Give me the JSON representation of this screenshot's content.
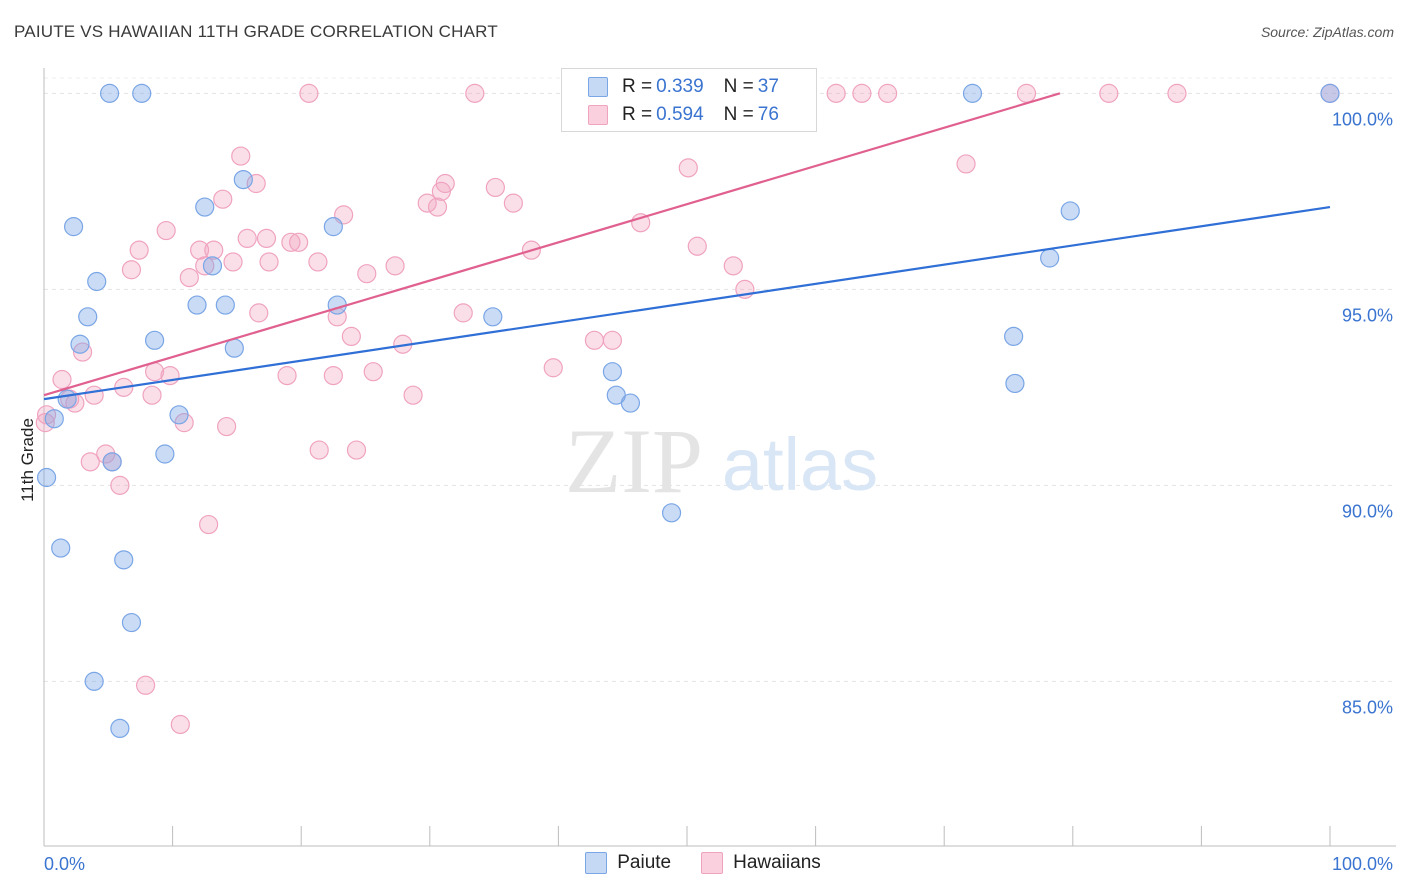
{
  "header": {
    "title": "PAIUTE VS HAWAIIAN 11TH GRADE CORRELATION CHART",
    "source": "Source: ZipAtlas.com"
  },
  "watermark": {
    "zip": "ZIP",
    "atlas": "atlas"
  },
  "legend": {
    "rows": [
      {
        "r_label": "R = ",
        "r_value": "0.339",
        "n_label": "N = ",
        "n_value": "37"
      },
      {
        "r_label": "R = ",
        "r_value": "0.594",
        "n_label": "N = ",
        "n_value": "76"
      }
    ]
  },
  "bottom_legend": {
    "paiute": "Paiute",
    "hawaiians": "Hawaiians"
  },
  "chart_data": {
    "type": "scatter",
    "title": "PAIUTE VS HAWAIIAN 11TH GRADE CORRELATION CHART",
    "xlabel": "",
    "ylabel": "11th Grade",
    "xlim": [
      0,
      100
    ],
    "ylim": [
      80.8,
      100.8
    ],
    "x_tick_labels": [
      "0.0%",
      "100.0%"
    ],
    "y_ticks": [
      85,
      90,
      95,
      100
    ],
    "y_tick_labels": [
      "85.0%",
      "90.0%",
      "95.0%",
      "100.0%"
    ],
    "colors": {
      "paiute": "#7aa6e6",
      "paiute_line": "#2f6fd6",
      "hawaiians": "#f0a3bf",
      "hawaiians_line": "#e0608f"
    },
    "series": [
      {
        "name": "Paiute",
        "r": 0.339,
        "n": 37,
        "trend": {
          "x0": 0,
          "y0": 92.2,
          "x1": 100,
          "y1": 97.1
        },
        "points": [
          [
            0.2,
            90.2
          ],
          [
            0.8,
            91.7
          ],
          [
            1.3,
            88.4
          ],
          [
            1.8,
            92.2
          ],
          [
            2.3,
            96.6
          ],
          [
            2.8,
            93.6
          ],
          [
            3.4,
            94.3
          ],
          [
            3.9,
            85.0
          ],
          [
            4.1,
            95.2
          ],
          [
            5.3,
            90.6
          ],
          [
            5.1,
            100.0
          ],
          [
            5.9,
            83.8
          ],
          [
            6.2,
            88.1
          ],
          [
            6.8,
            86.5
          ],
          [
            7.6,
            100.0
          ],
          [
            8.6,
            93.7
          ],
          [
            9.4,
            90.8
          ],
          [
            10.5,
            91.8
          ],
          [
            11.9,
            94.6
          ],
          [
            12.5,
            97.1
          ],
          [
            13.1,
            95.6
          ],
          [
            14.1,
            94.6
          ],
          [
            14.8,
            93.5
          ],
          [
            15.5,
            97.8
          ],
          [
            22.5,
            96.6
          ],
          [
            22.8,
            94.6
          ],
          [
            34.9,
            94.3
          ],
          [
            44.2,
            92.9
          ],
          [
            44.5,
            92.3
          ],
          [
            45.6,
            92.1
          ],
          [
            48.8,
            89.3
          ],
          [
            72.2,
            100.0
          ],
          [
            75.5,
            92.6
          ],
          [
            75.4,
            93.8
          ],
          [
            78.2,
            95.8
          ],
          [
            79.8,
            97.0
          ],
          [
            100.0,
            100.0
          ]
        ]
      },
      {
        "name": "Hawaiians",
        "r": 0.594,
        "n": 76,
        "trend": {
          "x0": 0,
          "y0": 92.3,
          "x1": 79,
          "y1": 100.0
        },
        "points": [
          [
            0.1,
            91.6
          ],
          [
            1.4,
            92.7
          ],
          [
            2.0,
            92.2
          ],
          [
            2.4,
            92.1
          ],
          [
            3.0,
            93.4
          ],
          [
            3.6,
            90.6
          ],
          [
            3.9,
            92.3
          ],
          [
            4.8,
            90.8
          ],
          [
            5.3,
            90.6
          ],
          [
            5.9,
            90.0
          ],
          [
            6.2,
            92.5
          ],
          [
            6.8,
            95.5
          ],
          [
            7.4,
            96.0
          ],
          [
            7.9,
            84.9
          ],
          [
            8.4,
            92.3
          ],
          [
            8.6,
            92.9
          ],
          [
            9.5,
            96.5
          ],
          [
            9.8,
            92.8
          ],
          [
            10.6,
            83.9
          ],
          [
            10.9,
            91.6
          ],
          [
            11.3,
            95.3
          ],
          [
            12.1,
            96.0
          ],
          [
            12.5,
            95.6
          ],
          [
            12.8,
            89.0
          ],
          [
            13.2,
            96.0
          ],
          [
            13.9,
            97.3
          ],
          [
            14.2,
            91.5
          ],
          [
            14.7,
            95.7
          ],
          [
            15.3,
            98.4
          ],
          [
            15.8,
            96.3
          ],
          [
            16.5,
            97.7
          ],
          [
            16.7,
            94.4
          ],
          [
            17.3,
            96.3
          ],
          [
            17.5,
            95.7
          ],
          [
            18.9,
            92.8
          ],
          [
            19.2,
            96.2
          ],
          [
            19.8,
            96.2
          ],
          [
            20.6,
            100.0
          ],
          [
            21.3,
            95.7
          ],
          [
            21.4,
            90.9
          ],
          [
            22.5,
            92.8
          ],
          [
            22.8,
            94.3
          ],
          [
            23.3,
            96.9
          ],
          [
            23.9,
            93.8
          ],
          [
            24.3,
            90.9
          ],
          [
            25.1,
            95.4
          ],
          [
            25.6,
            92.9
          ],
          [
            27.3,
            95.6
          ],
          [
            27.9,
            93.6
          ],
          [
            28.7,
            92.3
          ],
          [
            29.8,
            97.2
          ],
          [
            30.6,
            97.1
          ],
          [
            30.9,
            97.5
          ],
          [
            31.2,
            97.7
          ],
          [
            32.6,
            94.4
          ],
          [
            33.5,
            100.0
          ],
          [
            35.1,
            97.6
          ],
          [
            36.5,
            97.2
          ],
          [
            37.9,
            96.0
          ],
          [
            39.6,
            93.0
          ],
          [
            42.8,
            93.7
          ],
          [
            44.2,
            93.7
          ],
          [
            46.4,
            96.7
          ],
          [
            50.1,
            98.1
          ],
          [
            50.8,
            96.1
          ],
          [
            53.6,
            95.6
          ],
          [
            54.5,
            95.0
          ],
          [
            61.6,
            100.0
          ],
          [
            63.6,
            100.0
          ],
          [
            65.6,
            100.0
          ],
          [
            71.7,
            98.2
          ],
          [
            76.4,
            100.0
          ],
          [
            82.8,
            100.0
          ],
          [
            88.1,
            100.0
          ],
          [
            100.0,
            100.0
          ],
          [
            0.2,
            91.8
          ]
        ]
      }
    ]
  }
}
